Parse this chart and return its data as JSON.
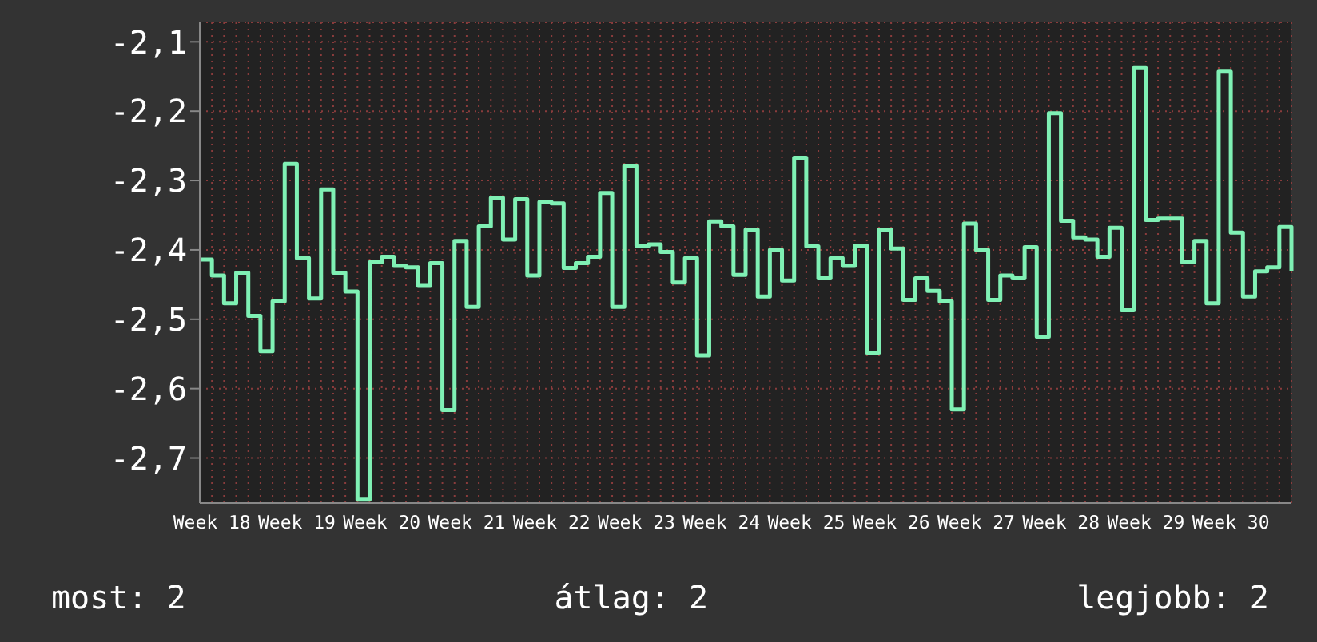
{
  "chart_data": {
    "type": "step",
    "categories": [
      null,
      "Week 18",
      null,
      null,
      null,
      null,
      null,
      null,
      "Week 19",
      null,
      null,
      null,
      null,
      null,
      null,
      "Week 20",
      null,
      null,
      null,
      null,
      null,
      null,
      "Week 21",
      null,
      null,
      null,
      null,
      null,
      null,
      "Week 22",
      null,
      null,
      null,
      null,
      null,
      null,
      "Week 23",
      null,
      null,
      null,
      null,
      null,
      null,
      "Week 24",
      null,
      null,
      null,
      null,
      null,
      null,
      "Week 25",
      null,
      null,
      null,
      null,
      null,
      null,
      "Week 26",
      null,
      null,
      null,
      null,
      null,
      null,
      "Week 27",
      null,
      null,
      null,
      null,
      null,
      null,
      "Week 28",
      null,
      null,
      null,
      null,
      null,
      null,
      "Week 29",
      null,
      null,
      null,
      null,
      null,
      null,
      "Week 30",
      null,
      null,
      null,
      null,
      null
    ],
    "series": [
      {
        "color": "#7ff0b4",
        "values": [
          -2.414,
          -2.437,
          -2.477,
          -2.433,
          -2.495,
          -2.546,
          -2.474,
          -2.276,
          -2.412,
          -2.47,
          -2.313,
          -2.433,
          -2.46,
          -2.76,
          -2.418,
          -2.41,
          -2.423,
          -2.425,
          -2.452,
          -2.419,
          -2.631,
          -2.387,
          -2.482,
          -2.366,
          -2.325,
          -2.385,
          -2.327,
          -2.437,
          -2.331,
          -2.333,
          -2.426,
          -2.419,
          -2.41,
          -2.318,
          -2.482,
          -2.279,
          -2.394,
          -2.392,
          -2.403,
          -2.447,
          -2.412,
          -2.552,
          -2.359,
          -2.366,
          -2.436,
          -2.371,
          -2.467,
          -2.4,
          -2.444,
          -2.267,
          -2.395,
          -2.441,
          -2.412,
          -2.423,
          -2.394,
          -2.548,
          -2.371,
          -2.398,
          -2.472,
          -2.441,
          -2.459,
          -2.474,
          -2.63,
          -2.362,
          -2.4,
          -2.472,
          -2.437,
          -2.441,
          -2.396,
          -2.525,
          -2.203,
          -2.358,
          -2.382,
          -2.385,
          -2.41,
          -2.368,
          -2.487,
          -2.138,
          -2.357,
          -2.355,
          -2.355,
          -2.418,
          -2.387,
          -2.477,
          -2.143,
          -2.375,
          -2.467,
          -2.431,
          -2.425,
          -2.367,
          -2.431
        ]
      }
    ],
    "ylim": [
      -2.765,
      -2.072
    ],
    "yticks": [
      {
        "value": -2.7,
        "label": "-2,7"
      },
      {
        "value": -2.6,
        "label": "-2,6"
      },
      {
        "value": -2.5,
        "label": "-2,5"
      },
      {
        "value": -2.4,
        "label": "-2,4"
      },
      {
        "value": -2.3,
        "label": "-2,3"
      },
      {
        "value": -2.2,
        "label": "-2,2"
      },
      {
        "value": -2.1,
        "label": "-2,1"
      }
    ],
    "grid": true,
    "legend": false,
    "marker": "none",
    "line_style": "solid",
    "annotations": [
      "most: 2",
      "átlag: 2",
      "legjobb: 2"
    ]
  }
}
